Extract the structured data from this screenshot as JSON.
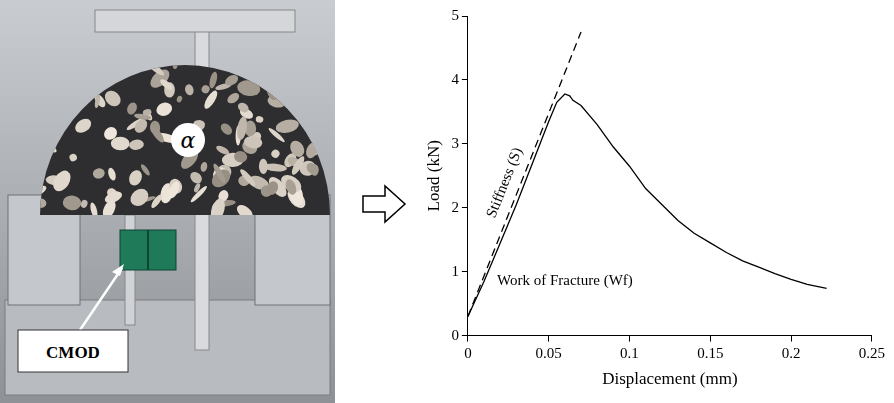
{
  "photo": {
    "callout": "CMOD",
    "specimen_mark": "α"
  },
  "chart_data": {
    "type": "line",
    "x_label": "Displacement (mm)",
    "y_label": "Load (kN)",
    "xlim": [
      0,
      0.25
    ],
    "xticks": [
      0,
      0.05,
      0.1,
      0.15,
      0.2,
      0.25
    ],
    "ylim": [
      0,
      5
    ],
    "yticks": [
      0,
      1,
      2,
      3,
      4,
      5
    ],
    "grid": false,
    "series": [
      {
        "color": "#000000",
        "line_style": "solid",
        "x": [
          0,
          0.01,
          0.02,
          0.03,
          0.04,
          0.05,
          0.055,
          0.06,
          0.063,
          0.065,
          0.07,
          0.08,
          0.09,
          0.1,
          0.11,
          0.12,
          0.13,
          0.14,
          0.15,
          0.16,
          0.17,
          0.18,
          0.19,
          0.2,
          0.21,
          0.222
        ],
        "values": [
          0.3,
          0.85,
          1.45,
          2.05,
          2.7,
          3.35,
          3.65,
          3.78,
          3.75,
          3.68,
          3.6,
          3.3,
          2.95,
          2.65,
          2.3,
          2.05,
          1.8,
          1.6,
          1.45,
          1.3,
          1.17,
          1.07,
          0.97,
          0.88,
          0.8,
          0.74
        ]
      },
      {
        "name": "Stiffness (S)",
        "color": "#000000",
        "line_style": "dashed",
        "x": [
          0,
          0.07
        ],
        "values": [
          0.3,
          4.75
        ]
      }
    ],
    "annotations": [
      {
        "text": "Work of Fracture (Wf)",
        "x": 0.018,
        "y": 0.85
      }
    ]
  }
}
